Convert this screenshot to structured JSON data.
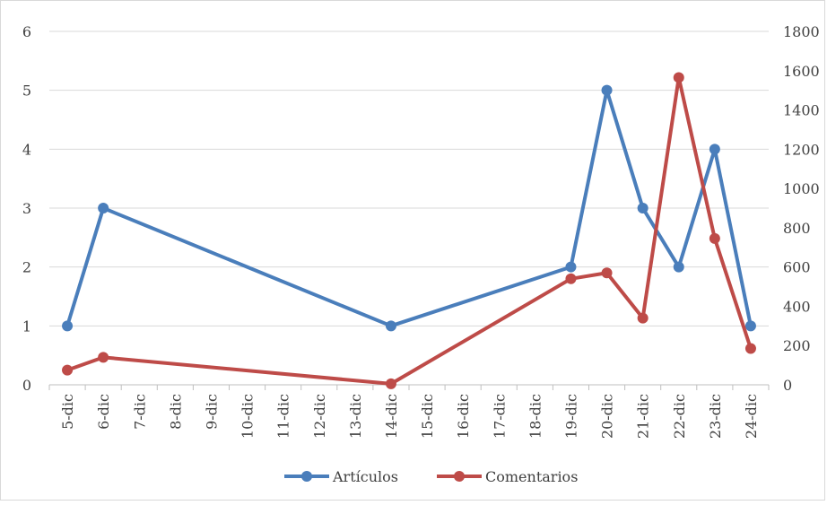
{
  "chart_data": {
    "type": "line",
    "categories": [
      "5-dic",
      "6-dic",
      "7-dic",
      "8-dic",
      "9-dic",
      "10-dic",
      "11-dic",
      "12-dic",
      "13-dic",
      "14-dic",
      "15-dic",
      "16-dic",
      "17-dic",
      "18-dic",
      "19-dic",
      "20-dic",
      "21-dic",
      "22-dic",
      "23-dic",
      "24-dic"
    ],
    "y_left": {
      "range": [
        0,
        6
      ],
      "ticks": [
        "0",
        "1",
        "2",
        "3",
        "4",
        "5",
        "6"
      ]
    },
    "y_right": {
      "range": [
        0,
        1800
      ],
      "ticks": [
        "0",
        "200",
        "400",
        "600",
        "800",
        "1000",
        "1200",
        "1400",
        "1600",
        "1800"
      ]
    },
    "grid": true,
    "legend_position": "bottom",
    "series": [
      {
        "name": "Artículos",
        "axis": "left",
        "color": "#4a7ebb",
        "points": [
          {
            "x": "5-dic",
            "y": 1
          },
          {
            "x": "6-dic",
            "y": 3
          },
          {
            "x": "14-dic",
            "y": 1
          },
          {
            "x": "19-dic",
            "y": 2
          },
          {
            "x": "20-dic",
            "y": 5
          },
          {
            "x": "21-dic",
            "y": 3
          },
          {
            "x": "22-dic",
            "y": 2
          },
          {
            "x": "23-dic",
            "y": 4
          },
          {
            "x": "24-dic",
            "y": 1
          }
        ]
      },
      {
        "name": "Comentarios",
        "axis": "right",
        "color": "#be4b48",
        "points": [
          {
            "x": "5-dic",
            "y": 75
          },
          {
            "x": "6-dic",
            "y": 140
          },
          {
            "x": "14-dic",
            "y": 5
          },
          {
            "x": "19-dic",
            "y": 540
          },
          {
            "x": "20-dic",
            "y": 570
          },
          {
            "x": "21-dic",
            "y": 340
          },
          {
            "x": "22-dic",
            "y": 1565
          },
          {
            "x": "23-dic",
            "y": 745
          },
          {
            "x": "24-dic",
            "y": 185
          }
        ]
      }
    ]
  }
}
